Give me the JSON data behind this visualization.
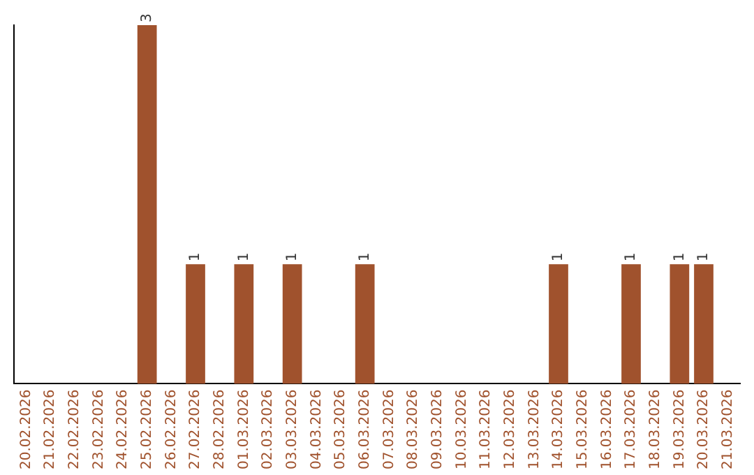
{
  "chart_data": {
    "type": "bar",
    "categories": [
      "20.02.2026",
      "21.02.2026",
      "22.02.2026",
      "23.02.2026",
      "24.02.2026",
      "25.02.2026",
      "26.02.2026",
      "27.02.2026",
      "28.02.2026",
      "01.03.2026",
      "02.03.2026",
      "03.03.2026",
      "04.03.2026",
      "05.03.2026",
      "06.03.2026",
      "07.03.2026",
      "08.03.2026",
      "09.03.2026",
      "10.03.2026",
      "11.03.2026",
      "12.03.2026",
      "13.03.2026",
      "14.03.2026",
      "15.03.2026",
      "16.03.2026",
      "17.03.2026",
      "18.03.2026",
      "19.03.2026",
      "20.03.2026",
      "21.03.2026"
    ],
    "values": [
      0,
      0,
      0,
      0,
      0,
      3,
      0,
      1,
      0,
      1,
      0,
      1,
      0,
      0,
      1,
      0,
      0,
      0,
      0,
      0,
      0,
      0,
      1,
      0,
      0,
      1,
      0,
      1,
      1,
      0
    ],
    "value_labels": [
      null,
      null,
      null,
      null,
      null,
      "3",
      null,
      "1",
      null,
      "1",
      null,
      "1",
      null,
      null,
      "1",
      null,
      null,
      null,
      null,
      null,
      null,
      null,
      "1",
      null,
      null,
      "1",
      null,
      "1",
      "1",
      null
    ],
    "color": "#a0522d",
    "grid": false,
    "legend": false
  }
}
